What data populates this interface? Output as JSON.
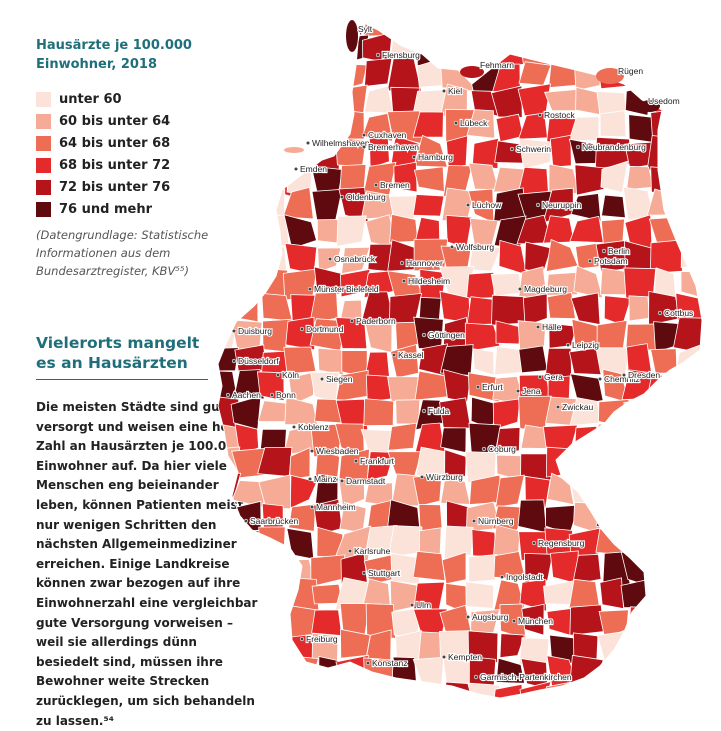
{
  "legend": {
    "title": "Hausärzte je 100.000 Einwohner, 2018",
    "items": [
      {
        "label": "unter 60",
        "color": "#fbe3da"
      },
      {
        "label": "60 bis unter 64",
        "color": "#f6ab96"
      },
      {
        "label": "64 bis unter 68",
        "color": "#ee6d55"
      },
      {
        "label": "68 bis unter 72",
        "color": "#e42a2b"
      },
      {
        "label": "72 bis unter 76",
        "color": "#b5141b"
      },
      {
        "label": "76 und mehr",
        "color": "#5e0a0e"
      }
    ],
    "source": "(Datengrundlage: Statistische Informationen aus dem Bundesarztregister, KBV⁵⁵)"
  },
  "article": {
    "headline": "Vielerorts mangelt es an Hausärzten",
    "body": "Die meisten Städte sind gut versorgt und weisen eine hohe Zahl an Hausärzten je 100.000 Einwohner auf. Da hier viele Menschen eng beieinander leben, können Patienten meist in nur wenigen Schritten den nächsten Allgemeinmediziner erreichen. Einige Landkreise können zwar bezogen auf ihre Einwohnerzahl eine vergleichbar gute Versorgung vorweisen – weil sie allerdings dünn besiedelt sind, müssen ihre Bewohner weite Strecken zurücklegen, um sich behandeln zu lassen.⁵⁴"
  },
  "cities": [
    "Sylt",
    "Flensburg",
    "Fehmarn",
    "Rügen",
    "Kiel",
    "Usedom",
    "Lübeck",
    "Rostock",
    "Cuxhaven",
    "Wilhelmshaven",
    "Bremerhaven",
    "Hamburg",
    "Schwerin",
    "Neubrandenburg",
    "Emden",
    "Oldenburg",
    "Bremen",
    "Lüchow",
    "Neuruppin",
    "Berlin",
    "Wolfsburg",
    "Potsdam",
    "Osnabrück",
    "Hannover",
    "Bielefeld",
    "Münster",
    "Hildesheim",
    "Magdeburg",
    "Cottbus",
    "Paderborn",
    "Duisburg",
    "Dortmund",
    "Halle",
    "Göttingen",
    "Leipzig",
    "Kassel",
    "Düsseldorf",
    "Köln",
    "Siegen",
    "Chemnitz",
    "Dresden",
    "Erfurt",
    "Gera",
    "Jena",
    "Aachen",
    "Bonn",
    "Zwickau",
    "Fulda",
    "Koblenz",
    "Coburg",
    "Wiesbaden",
    "Frankfurt",
    "Mainz",
    "Darmstadt",
    "Würzburg",
    "Saarbrücken",
    "Mannheim",
    "Nürnberg",
    "Karlsruhe",
    "Regensburg",
    "Stuttgart",
    "Ingolstadt",
    "Ulm",
    "Augsburg",
    "München",
    "Freiburg",
    "Kempten",
    "Konstanz",
    "Garmisch-Partenkirchen"
  ]
}
